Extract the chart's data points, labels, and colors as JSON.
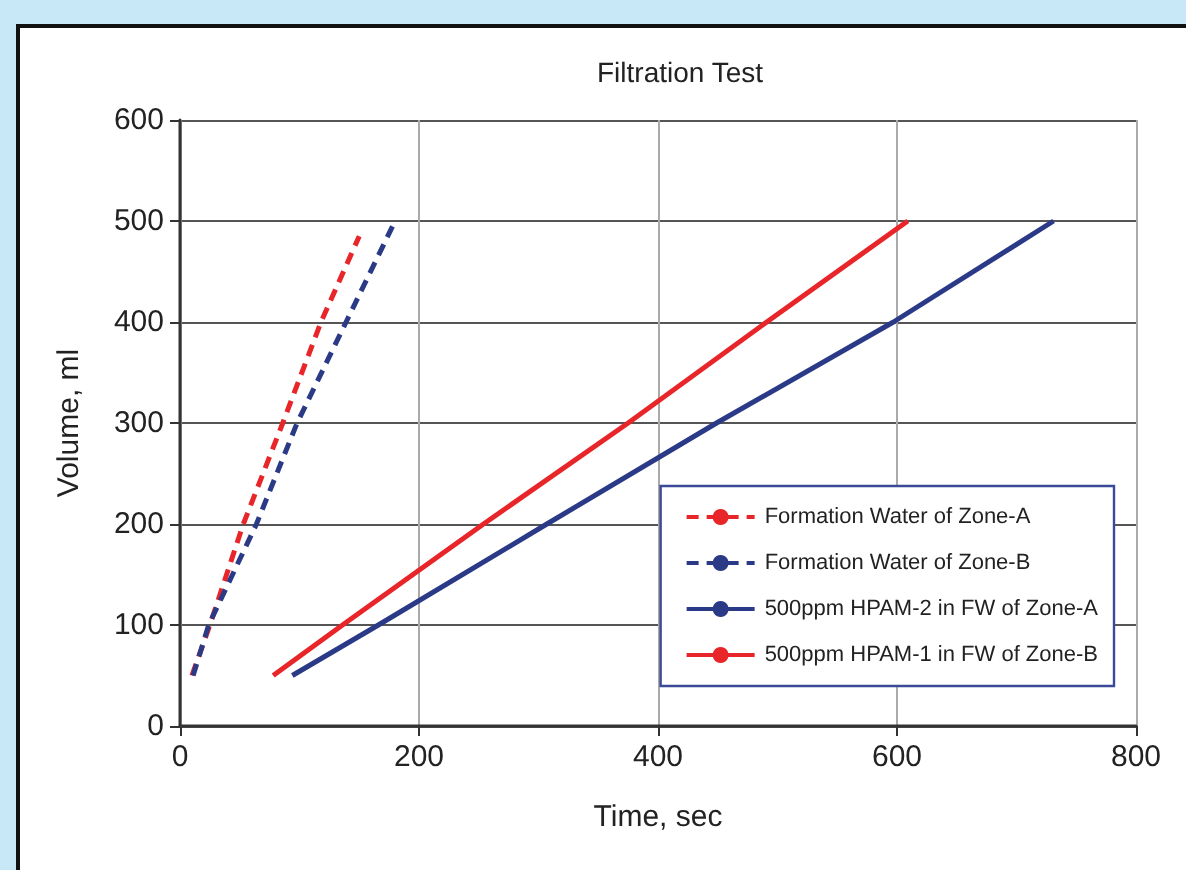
{
  "chart_data": {
    "type": "line",
    "title": "Filtration Test",
    "xlabel": "Time, sec",
    "ylabel": "Volume, ml",
    "xlim": [
      0,
      800
    ],
    "xticks": [
      0,
      200,
      400,
      600,
      800
    ],
    "ylim": [
      0,
      600
    ],
    "yticks": [
      0,
      100,
      200,
      300,
      400,
      500,
      600
    ],
    "grid": true,
    "legend": "bottom right",
    "marker": "none",
    "series": [
      {
        "name": "Formation Water of Zone-A",
        "color": "#e8262a",
        "line_style": "dashed",
        "x": [
          10,
          25,
          53,
          86,
          118,
          150
        ],
        "values": [
          50,
          100,
          200,
          300,
          400,
          485
        ]
      },
      {
        "name": "Formation Water of Zone-B",
        "color": "#2b3a87",
        "line_style": "dashed",
        "x": [
          11,
          24,
          64,
          98,
          139,
          180
        ],
        "values": [
          50,
          100,
          200,
          300,
          400,
          500
        ]
      },
      {
        "name": "500ppm HPAM-2 in FW of Zone-A",
        "color": "#2b3a87",
        "line_style": "solid",
        "x": [
          94,
          166,
          307,
          449,
          597,
          731
        ],
        "values": [
          50,
          100,
          200,
          300,
          400,
          500
        ]
      },
      {
        "name": "500ppm HPAM-1 in FW of Zone-B",
        "color": "#e8262a",
        "line_style": "solid",
        "x": [
          78,
          136,
          254,
          375,
          491,
          609
        ],
        "values": [
          50,
          100,
          200,
          300,
          400,
          500
        ]
      }
    ]
  }
}
